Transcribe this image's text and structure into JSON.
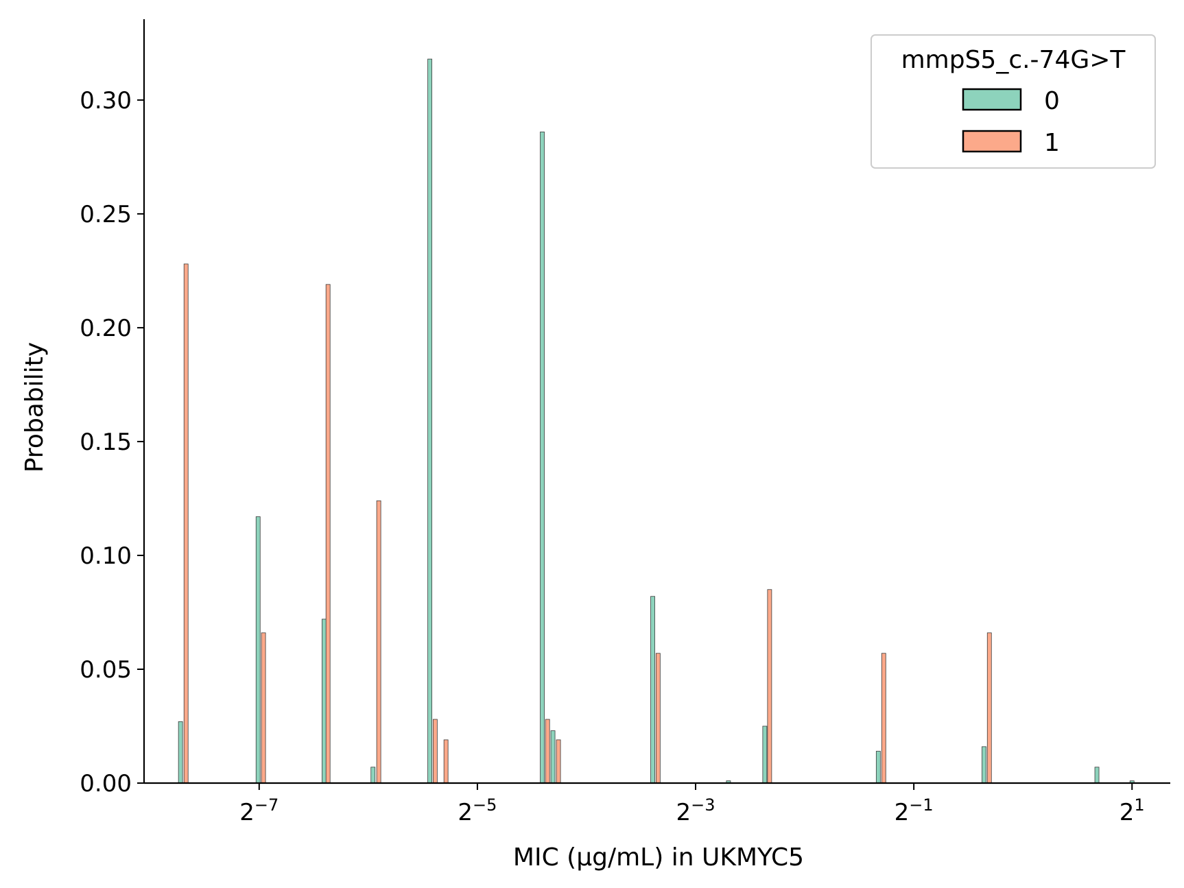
{
  "colors": {
    "series0": "#8dd3bc",
    "series1": "#fca98a",
    "edge": "#3a3a3a",
    "axis": "#000000"
  },
  "chart_data": {
    "type": "bar",
    "xlabel": "MIC (μg/mL) in UKMYC5",
    "ylabel": "Probability",
    "x_scale": "log2",
    "xlim": [
      0.00376,
      2.55
    ],
    "ylim": [
      0,
      0.3355
    ],
    "x_ticks": [
      {
        "base": "2",
        "exp": "−7",
        "value": 0.0078125
      },
      {
        "base": "2",
        "exp": "−5",
        "value": 0.03125
      },
      {
        "base": "2",
        "exp": "−3",
        "value": 0.125
      },
      {
        "base": "2",
        "exp": "−1",
        "value": 0.5
      },
      {
        "base": "2",
        "exp": "1",
        "value": 2
      }
    ],
    "y_ticks": [
      "0.00",
      "0.05",
      "0.10",
      "0.15",
      "0.20",
      "0.25",
      "0.30"
    ],
    "legend": {
      "title": "mmpS5_c.-74G>T",
      "position": "top-right"
    },
    "series": [
      {
        "name": "0",
        "color": "#8dd3bc",
        "x": [
          0.00474,
          0.00776,
          0.0118,
          0.0161,
          0.0231,
          0.0472,
          0.0505,
          0.0952,
          0.154,
          0.194,
          0.399,
          0.781,
          1.6,
          2.0
        ],
        "values": [
          0.027,
          0.117,
          0.072,
          0.007,
          0.318,
          0.286,
          0.023,
          0.082,
          0.001,
          0.025,
          0.014,
          0.016,
          0.007,
          0.001
        ]
      },
      {
        "name": "1",
        "color": "#fca98a",
        "x": [
          0.00491,
          0.00803,
          0.0121,
          0.0167,
          0.0239,
          0.0256,
          0.0488,
          0.0523,
          0.0985,
          0.2,
          0.413,
          0.808
        ],
        "values": [
          0.228,
          0.066,
          0.219,
          0.124,
          0.028,
          0.019,
          0.028,
          0.019,
          0.057,
          0.085,
          0.057,
          0.066
        ]
      }
    ]
  }
}
